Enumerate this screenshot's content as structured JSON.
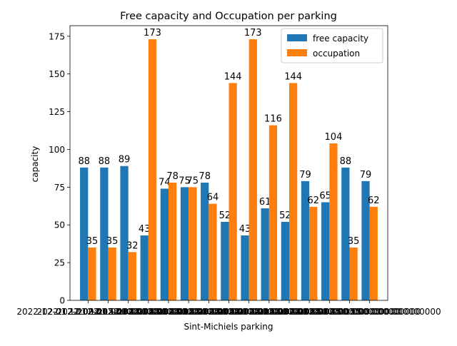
{
  "chart_data": {
    "type": "bar",
    "title": "Free capacity and Occupation per parking",
    "xlabel": "Sint-Michiels parking",
    "ylabel": "capacity",
    "ylim": [
      0,
      182
    ],
    "yticks": [
      0,
      25,
      50,
      75,
      100,
      125,
      150,
      175
    ],
    "grid": false,
    "legend_position": "top-right",
    "categories": [
      "2022-12-01 12:00:00.000000000",
      "2022-12-01 12:15:00.000000000",
      "2022-12-01 12:30:00.000000000",
      "2022-12-01 12:45:00.000000000",
      "2022-12-01 13:00:00.000000000",
      "2022-12-01 13:15:00.000000000",
      "2022-12-01 13:30:00.000000000",
      "2022-12-01 13:45:00.000000000",
      "2022-12-01 14:00:00.000000000",
      "2022-12-01 14:15:00.000000000",
      "2022-12-01 14:30:00.000000000",
      "2022-12-01 14:45:00.000000000",
      "2022-12-01 15:00:00.000000000",
      "2022-12-01 15:15:00.000000000",
      "2022-12-01 15:30:00.000000000"
    ],
    "series": [
      {
        "name": "free capacity",
        "color": "#1f77b4",
        "values": [
          88,
          88,
          89,
          43,
          74,
          75,
          78,
          52,
          43,
          61,
          52,
          79,
          65,
          88,
          79
        ]
      },
      {
        "name": "occupation",
        "color": "#ff7f0e",
        "values": [
          35,
          35,
          32,
          173,
          78,
          75,
          64,
          144,
          173,
          116,
          144,
          62,
          104,
          35,
          62
        ]
      }
    ]
  }
}
